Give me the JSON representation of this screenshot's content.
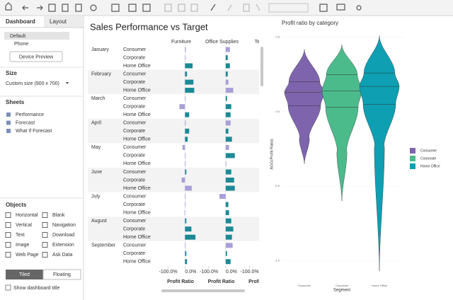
{
  "sidebar": {
    "tabs": [
      "Dashboard",
      "Layout"
    ],
    "devices": [
      "Default",
      "Phone"
    ],
    "device_preview": "Device Preview",
    "size_heading": "Size",
    "size_value": "Custom size (900 x 700)",
    "sheets_heading": "Sheets",
    "sheets": [
      "Performance",
      "Forecast",
      "What If Forecast"
    ],
    "objects_heading": "Objects",
    "objects": [
      "Horizontal",
      "Blank",
      "Vertical",
      "Navigation",
      "Text",
      "Download",
      "Image",
      "Extension",
      "Web Page",
      "Ask Data"
    ],
    "layout_modes": [
      "Tiled",
      "Floating"
    ],
    "show_title": "Show dashboard title"
  },
  "bar_chart": {
    "title": "Sales Performance vs Target",
    "columns": [
      "Furniture",
      "Office Supplies",
      "Techno"
    ],
    "months": [
      "January",
      "February",
      "March",
      "April",
      "May",
      "June",
      "July",
      "August",
      "September"
    ],
    "segments": [
      "Consumer",
      "Corporate",
      "Home Office"
    ],
    "axis_label": "Profit Ratio",
    "xlim": [
      -140,
      95
    ],
    "xticks": [
      {
        "value": -100,
        "label": "-100.0%"
      },
      {
        "value": 0,
        "label": "0.0%"
      }
    ],
    "series": [
      {
        "name": "Furniture",
        "values": [
          5,
          2,
          45,
          12,
          50,
          55,
          2,
          -33,
          25,
          4,
          25,
          16,
          -15,
          2,
          0,
          8,
          -20,
          40,
          1,
          2,
          -3,
          8,
          38,
          62,
          2,
          8,
          12
        ],
        "colors": [
          "#a99fd8",
          "#a99fd8",
          "#1b8a96",
          "#1b8a96",
          "#1b8a96",
          "#1b8a96",
          "#a99fd8",
          "#a99fd8",
          "#1b8a96",
          "#a99fd8",
          "#1b8a96",
          "#1b8a96",
          "#a99fd8",
          "#a99fd8",
          "#a99fd8",
          "#1b8a96",
          "#a99fd8",
          "#a99fd8",
          "#a99fd8",
          "#a99fd8",
          "#a99fd8",
          "#1b8a96",
          "#1b8a96",
          "#1b8a96",
          "#a99fd8",
          "#1b8a96",
          "#1b8a96"
        ]
      },
      {
        "name": "Office Supplies",
        "values": [
          25,
          12,
          25,
          12,
          16,
          45,
          8,
          33,
          29,
          29,
          16,
          37,
          20,
          54,
          2,
          33,
          50,
          54,
          -37,
          16,
          20,
          33,
          45,
          37,
          41,
          8,
          29
        ],
        "colors": [
          "#a99fd8",
          "#1b8a96",
          "#1b8a96",
          "#1b8a96",
          "#a99fd8",
          "#a99fd8",
          "#1b8a96",
          "#1b8a96",
          "#1b8a96",
          "#a99fd8",
          "#1b8a96",
          "#1b8a96",
          "#a99fd8",
          "#1b8a96",
          "#a99fd8",
          "#1b8a96",
          "#1b8a96",
          "#1b8a96",
          "#a99fd8",
          "#1b8a96",
          "#1b8a96",
          "#1b8a96",
          "#1b8a96",
          "#1b8a96",
          "#a99fd8",
          "#1b8a96",
          "#1b8a96"
        ]
      }
    ]
  },
  "violin_chart": {
    "title": "Profit ratio by category",
    "y_label": "AGG(Profit Ratio)",
    "x_label": "Segment",
    "ylim": [
      -1.15,
      0.56
    ],
    "yticks": [
      0.5,
      {
        "value": 0,
        "label": "0.0"
      },
      -0.5,
      {
        "value": -1,
        "label": "-1.0"
      }
    ],
    "series": [
      {
        "name": "Consumer",
        "color": "#7e64ad",
        "max": 0.42,
        "q3": 0.2,
        "median": 0.13,
        "q1": 0.04,
        "min": -0.35
      },
      {
        "name": "Corporate",
        "color": "#4cbb8c",
        "max": 0.45,
        "q3": 0.25,
        "median": 0.14,
        "q1": 0.03,
        "min": -0.6
      },
      {
        "name": "Home Office",
        "color": "#0e9fb3",
        "max": 0.51,
        "q3": 0.26,
        "median": 0.17,
        "q1": 0.05,
        "min": -1.07
      }
    ]
  }
}
